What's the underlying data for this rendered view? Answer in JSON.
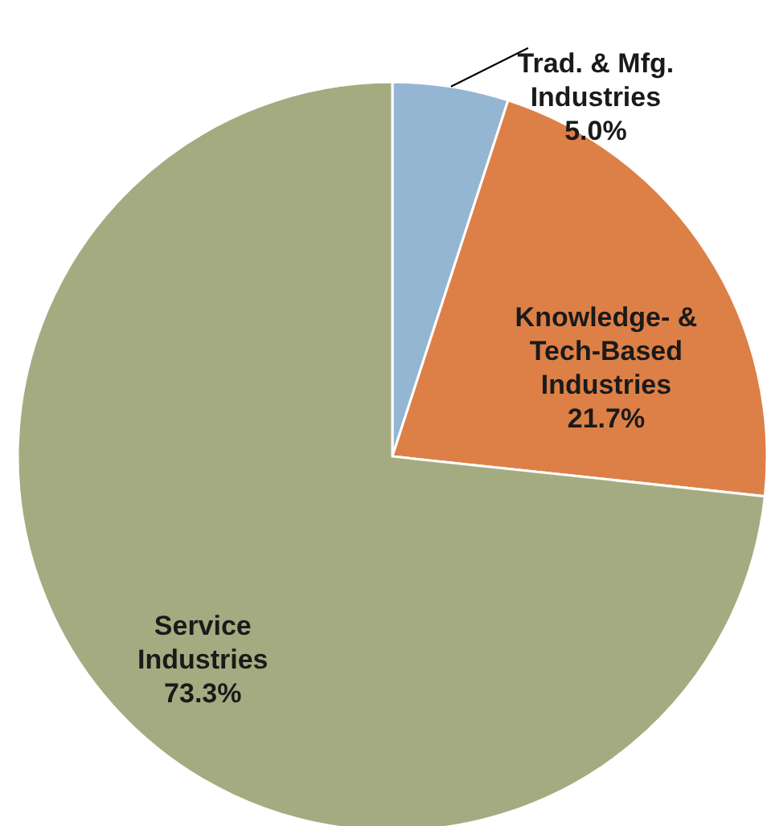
{
  "chart_data": {
    "type": "pie",
    "categories": [
      "Trad. & Mfg.\nIndustries",
      "Knowledge- &\nTech-Based\nIndustries",
      "Service\nIndustries"
    ],
    "values": [
      5.0,
      21.7,
      73.3
    ],
    "colors": [
      "#94b6d2",
      "#dd8047",
      "#a5ab81"
    ],
    "value_labels": [
      "5.0%",
      "21.7%",
      "73.3%"
    ]
  }
}
